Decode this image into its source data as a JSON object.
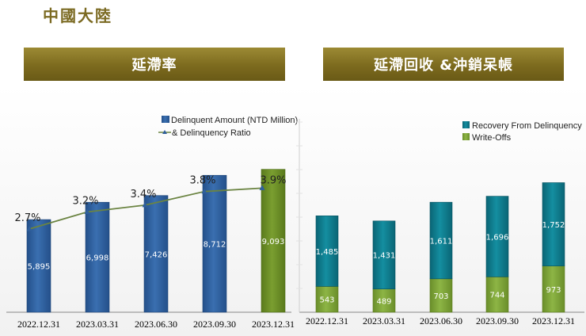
{
  "page": {
    "title": "中國大陸"
  },
  "left_banner": {
    "title": "延滯率"
  },
  "right_banner": {
    "title": "延滯回收 &沖銷呆帳"
  },
  "colors": {
    "bar_blue": "#2f5f9c",
    "bar_green_last": "#6b8e23",
    "line_green": "#6b8442",
    "bar_teal": "#0f7b8d",
    "bar_lime": "#7ea23a",
    "banner_gold": "#85712a"
  },
  "chart_data": [
    {
      "type": "bar",
      "title": "延滯率",
      "categories": [
        "2022.12.31",
        "2023.03.31",
        "2023.06.30",
        "2023.09.30",
        "2023.12.31"
      ],
      "series": [
        {
          "name": "Delinquent Amount (NTD Million)",
          "type": "bar",
          "values": [
            5895,
            6998,
            7426,
            8712,
            9093
          ],
          "value_labels": [
            "5,895",
            "6,998",
            "7,426",
            "8,712",
            "9,093"
          ]
        },
        {
          "name": "& Delinquency Ratio",
          "type": "line",
          "values": [
            2.7,
            3.2,
            3.4,
            3.8,
            3.9
          ],
          "value_labels": [
            "2.7%",
            "3.2%",
            "3.4%",
            "3.8%",
            "3.9%"
          ]
        }
      ],
      "ylim": [
        0,
        12000
      ],
      "ylim_ratio": [
        0,
        5
      ],
      "legend": [
        "Delinquent Amount (NTD Million)",
        "& Delinquency Ratio"
      ],
      "legend_position": "top-right"
    },
    {
      "type": "bar",
      "stacked": true,
      "title": "延滯回收 &沖銷呆帳",
      "categories": [
        "2022.12.31",
        "2023.03.31",
        "2023.06.30",
        "2023.09.30",
        "2023.12.31"
      ],
      "series": [
        {
          "name": "Write-Offs",
          "values": [
            543,
            489,
            703,
            744,
            973
          ],
          "value_labels": [
            "543",
            "489",
            "703",
            "744",
            "973"
          ]
        },
        {
          "name": "Recovery From Delinquency",
          "values": [
            1485,
            1431,
            1611,
            1696,
            1752
          ],
          "value_labels": [
            "1,485",
            "1,431",
            "1,611",
            "1,696",
            "1,752"
          ]
        }
      ],
      "ylim": [
        0,
        4000
      ],
      "legend": [
        "Recovery From Delinquency",
        "Write-Offs"
      ],
      "legend_position": "top-right"
    }
  ]
}
